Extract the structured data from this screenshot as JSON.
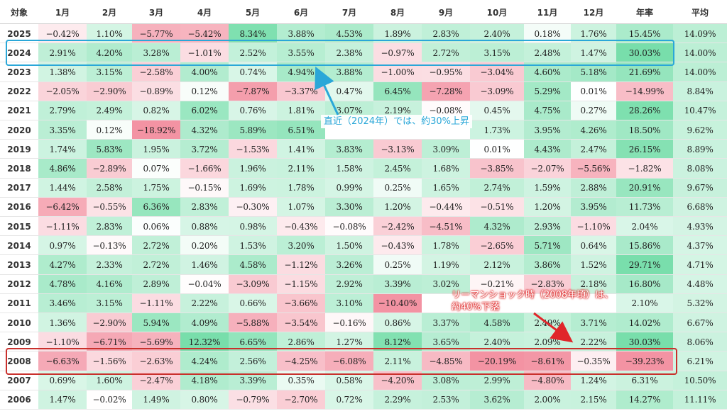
{
  "chart_data": {
    "type": "heatmap",
    "columns": [
      "対象",
      "1月",
      "2月",
      "3月",
      "4月",
      "5月",
      "6月",
      "7月",
      "8月",
      "9月",
      "10月",
      "11月",
      "12月",
      "年率",
      "平均"
    ],
    "rows": [
      {
        "year": "2025",
        "values": [
          -0.42,
          1.1,
          -5.77,
          -5.42,
          8.34,
          3.88,
          4.53,
          1.89,
          2.83,
          2.4,
          0.18,
          1.76
        ],
        "annual": 15.45,
        "avg": 14.09
      },
      {
        "year": "2024",
        "values": [
          2.91,
          4.2,
          3.28,
          -1.01,
          2.52,
          3.55,
          2.38,
          -0.97,
          2.72,
          3.15,
          2.48,
          1.47
        ],
        "annual": 30.03,
        "avg": 14.0
      },
      {
        "year": "2023",
        "values": [
          1.38,
          3.15,
          -2.58,
          4.0,
          0.74,
          4.94,
          3.88,
          -1.0,
          -0.95,
          -3.04,
          4.6,
          5.18
        ],
        "annual": 21.69,
        "avg": 14.0
      },
      {
        "year": "2022",
        "values": [
          -2.05,
          -2.9,
          -0.89,
          0.12,
          -7.87,
          -3.37,
          0.47,
          6.45,
          -7.28,
          -3.09,
          5.29,
          0.01
        ],
        "annual": -14.99,
        "avg": 8.84
      },
      {
        "year": "2021",
        "values": [
          2.79,
          2.49,
          0.82,
          6.02,
          0.76,
          1.81,
          3.07,
          2.19,
          -0.08,
          0.45,
          4.75,
          0.27
        ],
        "annual": 28.26,
        "avg": 10.47
      },
      {
        "year": "2020",
        "values": [
          3.35,
          0.12,
          -18.92,
          4.32,
          5.89,
          6.51,
          null,
          null,
          null,
          1.73,
          3.95,
          4.26
        ],
        "annual": 18.5,
        "avg": 9.62
      },
      {
        "year": "2019",
        "values": [
          1.74,
          5.83,
          1.95,
          3.72,
          -1.53,
          1.41,
          3.83,
          -3.13,
          3.09,
          0.01,
          4.43,
          2.47
        ],
        "annual": 26.15,
        "avg": 8.89
      },
      {
        "year": "2018",
        "values": [
          4.86,
          -2.89,
          0.07,
          -1.66,
          1.96,
          2.11,
          1.58,
          2.45,
          1.68,
          -3.85,
          -2.07,
          -5.56
        ],
        "annual": -1.82,
        "avg": 8.08
      },
      {
        "year": "2017",
        "values": [
          1.44,
          2.58,
          1.75,
          -0.15,
          1.69,
          1.78,
          0.99,
          0.25,
          1.65,
          2.74,
          1.59,
          2.88
        ],
        "annual": 20.91,
        "avg": 9.67
      },
      {
        "year": "2016",
        "values": [
          -6.42,
          -0.55,
          6.36,
          2.83,
          -0.3,
          1.07,
          3.3,
          1.2,
          -0.44,
          -0.51,
          1.2,
          3.95
        ],
        "annual": 11.73,
        "avg": 6.68
      },
      {
        "year": "2015",
        "values": [
          -1.11,
          2.83,
          0.06,
          0.88,
          0.98,
          -0.43,
          -0.08,
          -2.42,
          -4.51,
          4.32,
          2.93,
          -1.1
        ],
        "annual": 2.04,
        "avg": 4.93
      },
      {
        "year": "2014",
        "values": [
          0.97,
          -0.13,
          2.72,
          0.2,
          1.53,
          3.2,
          1.5,
          -0.43,
          1.78,
          -2.65,
          5.71,
          0.64
        ],
        "annual": 15.86,
        "avg": 4.37
      },
      {
        "year": "2013",
        "values": [
          4.27,
          2.33,
          2.72,
          1.46,
          4.58,
          -1.12,
          3.26,
          0.25,
          1.19,
          2.12,
          3.86,
          1.52
        ],
        "annual": 29.71,
        "avg": 4.71
      },
      {
        "year": "2012",
        "values": [
          4.78,
          4.16,
          2.89,
          -0.04,
          -3.09,
          -1.15,
          2.92,
          3.39,
          3.02,
          -0.21,
          -2.83,
          2.18
        ],
        "annual": 16.8,
        "avg": 4.48
      },
      {
        "year": "2011",
        "values": [
          3.46,
          3.15,
          -1.11,
          2.22,
          0.66,
          -3.66,
          3.1,
          -10.4,
          null,
          null,
          null,
          null
        ],
        "annual": 2.1,
        "avg": 5.32
      },
      {
        "year": "2010",
        "values": [
          1.36,
          -2.9,
          5.94,
          4.09,
          -5.88,
          -3.54,
          -0.16,
          0.86,
          3.37,
          4.58,
          2.49,
          3.71
        ],
        "annual": 14.02,
        "avg": 6.67
      },
      {
        "year": "2009",
        "values": [
          -1.1,
          -6.71,
          -5.69,
          12.32,
          6.65,
          2.86,
          1.27,
          8.12,
          3.65,
          2.4,
          2.09,
          2.22
        ],
        "annual": 30.03,
        "avg": 8.06
      },
      {
        "year": "2008",
        "values": [
          -6.63,
          -1.56,
          -2.63,
          4.24,
          2.56,
          -4.25,
          -6.08,
          2.11,
          -4.85,
          -20.19,
          -8.61,
          -0.35
        ],
        "annual": -39.23,
        "avg": 6.21
      },
      {
        "year": "2007",
        "values": [
          0.69,
          1.6,
          -2.47,
          4.18,
          3.39,
          0.35,
          0.58,
          -4.2,
          3.08,
          2.99,
          -4.8,
          1.24
        ],
        "annual": 6.31,
        "avg": 10.5
      },
      {
        "year": "2006",
        "values": [
          1.47,
          -0.02,
          1.49,
          0.8,
          -0.79,
          -2.7,
          0.72,
          2.29,
          2.53,
          3.62,
          2.0,
          2.15
        ],
        "annual": 14.27,
        "avg": 11.11
      }
    ],
    "highlight_rows": [
      "2024",
      "2008"
    ]
  },
  "annotations": {
    "callout_2024": "直近（2024年）では、約30%上昇",
    "callout_2008_line1": "リーマンショック時（2008年頃）は、",
    "callout_2008_line2": "約40%下落"
  },
  "colors": {
    "highlight_2024": "#2aa7d8",
    "highlight_2008": "#c9302c",
    "callout_2024_text": "#2aa7d8",
    "callout_2008_text": "#ffffff",
    "arrow_2024": "#2aa7d8",
    "arrow_2008": "#e0262a"
  }
}
